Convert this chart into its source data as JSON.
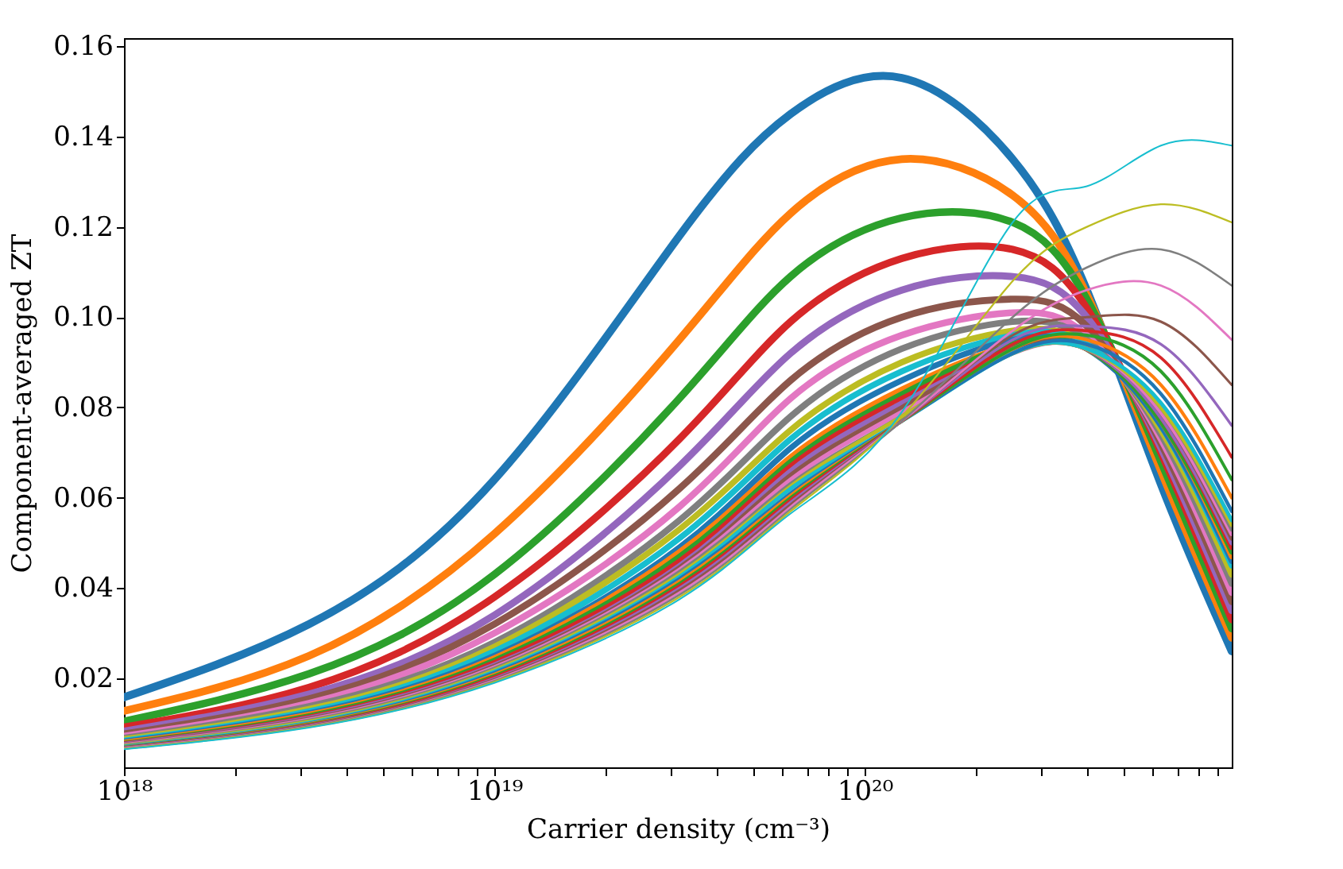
{
  "chart_data": {
    "type": "line",
    "xlabel": "Carrier density (cm⁻³)",
    "ylabel": "Component-averaged ZT",
    "log": "x",
    "grid": false,
    "legend": false,
    "line_style": "solid",
    "marker": "none",
    "x": [
      1e+18,
      3.16e+18,
      1e+19,
      3.16e+19,
      6.31e+19,
      1.26e+20,
      2.51e+20,
      3.98e+20,
      6.31e+20,
      9.8e+20
    ],
    "xlim": [
      1e+18,
      9.8e+20
    ],
    "ylim": [
      0.0003,
      0.1618
    ],
    "xticks": [
      {
        "value": 1e+18,
        "label": "10¹⁸"
      },
      {
        "value": 2e+18,
        "label": null
      },
      {
        "value": 3e+18,
        "label": null
      },
      {
        "value": 4e+18,
        "label": null
      },
      {
        "value": 5e+18,
        "label": null
      },
      {
        "value": 6e+18,
        "label": null
      },
      {
        "value": 7e+18,
        "label": null
      },
      {
        "value": 8e+18,
        "label": null
      },
      {
        "value": 9e+18,
        "label": null
      },
      {
        "value": 1e+19,
        "label": "10¹⁹"
      },
      {
        "value": 2e+19,
        "label": null
      },
      {
        "value": 3e+19,
        "label": null
      },
      {
        "value": 4e+19,
        "label": null
      },
      {
        "value": 5e+19,
        "label": null
      },
      {
        "value": 6e+19,
        "label": null
      },
      {
        "value": 7e+19,
        "label": null
      },
      {
        "value": 8e+19,
        "label": null
      },
      {
        "value": 9e+19,
        "label": null
      },
      {
        "value": 1e+20,
        "label": "10²⁰"
      },
      {
        "value": 2e+20,
        "label": null
      },
      {
        "value": 3e+20,
        "label": null
      },
      {
        "value": 4e+20,
        "label": null
      },
      {
        "value": 5e+20,
        "label": null
      },
      {
        "value": 6e+20,
        "label": null
      },
      {
        "value": 7e+20,
        "label": null
      },
      {
        "value": 8e+20,
        "label": null
      },
      {
        "value": 9e+20,
        "label": null
      }
    ],
    "yticks": [
      0.02,
      0.04,
      0.06,
      0.08,
      {
        "value": 0.1,
        "label": "0.10"
      },
      0.12,
      0.14,
      0.16
    ],
    "series": [
      {
        "color": "#1f77b4",
        "values": [
          0.0158,
          0.032,
          0.064,
          0.118,
          0.145,
          0.153,
          0.135,
          0.106,
          0.063,
          0.026
        ]
      },
      {
        "color": "#ff7f0e",
        "values": [
          0.0128,
          0.025,
          0.052,
          0.095,
          0.123,
          0.135,
          0.127,
          0.105,
          0.066,
          0.029
        ]
      },
      {
        "color": "#2ca02c",
        "values": [
          0.0105,
          0.021,
          0.043,
          0.082,
          0.109,
          0.122,
          0.121,
          0.104,
          0.068,
          0.031
        ]
      },
      {
        "color": "#d62728",
        "values": [
          0.0092,
          0.018,
          0.038,
          0.073,
          0.099,
          0.113,
          0.115,
          0.102,
          0.07,
          0.033
        ]
      },
      {
        "color": "#9467bd",
        "values": [
          0.0083,
          0.0165,
          0.034,
          0.067,
          0.092,
          0.106,
          0.109,
          0.1,
          0.071,
          0.035
        ]
      },
      {
        "color": "#8c564b",
        "values": [
          0.0077,
          0.0155,
          0.032,
          0.062,
          0.086,
          0.1,
          0.104,
          0.098,
          0.072,
          0.037
        ]
      },
      {
        "color": "#e377c2",
        "values": [
          0.0072,
          0.0145,
          0.03,
          0.058,
          0.082,
          0.096,
          0.101,
          0.096,
          0.073,
          0.039
        ]
      },
      {
        "color": "#7f7f7f",
        "values": [
          0.0068,
          0.0138,
          0.028,
          0.055,
          0.078,
          0.093,
          0.099,
          0.095,
          0.074,
          0.041
        ]
      },
      {
        "color": "#bcbd22",
        "values": [
          0.0065,
          0.0132,
          0.027,
          0.053,
          0.075,
          0.09,
          0.097,
          0.094,
          0.075,
          0.043
        ]
      },
      {
        "color": "#17becf",
        "values": [
          0.0062,
          0.0127,
          0.026,
          0.051,
          0.073,
          0.088,
          0.096,
          0.094,
          0.076,
          0.045
        ]
      },
      {
        "color": "#1f77b4",
        "values": [
          0.006,
          0.0123,
          0.025,
          0.049,
          0.071,
          0.086,
          0.095,
          0.093,
          0.076,
          0.046
        ]
      },
      {
        "color": "#ff7f0e",
        "values": [
          0.0058,
          0.012,
          0.0245,
          0.048,
          0.069,
          0.084,
          0.094,
          0.093,
          0.077,
          0.047
        ]
      },
      {
        "color": "#2ca02c",
        "values": [
          0.0056,
          0.0117,
          0.024,
          0.047,
          0.068,
          0.083,
          0.094,
          0.093,
          0.077,
          0.048
        ]
      },
      {
        "color": "#d62728",
        "values": [
          0.0055,
          0.0114,
          0.0235,
          0.046,
          0.067,
          0.082,
          0.093,
          0.093,
          0.078,
          0.049
        ]
      },
      {
        "color": "#9467bd",
        "values": [
          0.0054,
          0.0112,
          0.023,
          0.045,
          0.066,
          0.081,
          0.093,
          0.093,
          0.078,
          0.05
        ]
      },
      {
        "color": "#8c564b",
        "values": [
          0.0053,
          0.011,
          0.0227,
          0.0445,
          0.065,
          0.08,
          0.093,
          0.093,
          0.079,
          0.051
        ]
      },
      {
        "color": "#e377c2",
        "values": [
          0.0052,
          0.0108,
          0.0224,
          0.044,
          0.064,
          0.079,
          0.092,
          0.093,
          0.079,
          0.052
        ]
      },
      {
        "color": "#7f7f7f",
        "values": [
          0.0051,
          0.0106,
          0.0221,
          0.0435,
          0.063,
          0.078,
          0.092,
          0.093,
          0.08,
          0.053
        ]
      },
      {
        "color": "#bcbd22",
        "values": [
          0.005,
          0.0104,
          0.0218,
          0.043,
          0.0625,
          0.078,
          0.092,
          0.093,
          0.08,
          0.054
        ]
      },
      {
        "color": "#17becf",
        "values": [
          0.0049,
          0.0102,
          0.0215,
          0.0425,
          0.062,
          0.077,
          0.092,
          0.093,
          0.081,
          0.055
        ]
      },
      {
        "color": "#1f77b4",
        "values": [
          0.0048,
          0.01,
          0.0212,
          0.042,
          0.061,
          0.077,
          0.092,
          0.094,
          0.083,
          0.057
        ]
      },
      {
        "color": "#ff7f0e",
        "values": [
          0.0047,
          0.0099,
          0.0209,
          0.0415,
          0.0605,
          0.077,
          0.093,
          0.095,
          0.085,
          0.06
        ]
      },
      {
        "color": "#2ca02c",
        "values": [
          0.0047,
          0.0098,
          0.0206,
          0.041,
          0.06,
          0.077,
          0.093,
          0.096,
          0.088,
          0.064
        ]
      },
      {
        "color": "#d62728",
        "values": [
          0.0046,
          0.0097,
          0.0203,
          0.0405,
          0.0595,
          0.077,
          0.094,
          0.097,
          0.091,
          0.069
        ]
      },
      {
        "color": "#9467bd",
        "values": [
          0.0046,
          0.0096,
          0.02,
          0.04,
          0.059,
          0.077,
          0.095,
          0.098,
          0.094,
          0.076
        ]
      },
      {
        "color": "#8c564b",
        "values": [
          0.0045,
          0.0095,
          0.0198,
          0.0395,
          0.0585,
          0.077,
          0.096,
          0.1,
          0.099,
          0.085
        ]
      },
      {
        "color": "#e377c2",
        "values": [
          0.0045,
          0.0094,
          0.0196,
          0.039,
          0.058,
          0.077,
          0.097,
          0.106,
          0.107,
          0.095
        ]
      },
      {
        "color": "#7f7f7f",
        "values": [
          0.0044,
          0.0093,
          0.0194,
          0.0385,
          0.0575,
          0.077,
          0.1,
          0.111,
          0.115,
          0.107
        ]
      },
      {
        "color": "#bcbd22",
        "values": [
          0.0044,
          0.0092,
          0.0192,
          0.038,
          0.057,
          0.078,
          0.108,
          0.12,
          0.125,
          0.121
        ]
      },
      {
        "color": "#17becf",
        "values": [
          0.0043,
          0.0091,
          0.019,
          0.0375,
          0.0565,
          0.079,
          0.121,
          0.129,
          0.138,
          0.138
        ]
      }
    ]
  }
}
